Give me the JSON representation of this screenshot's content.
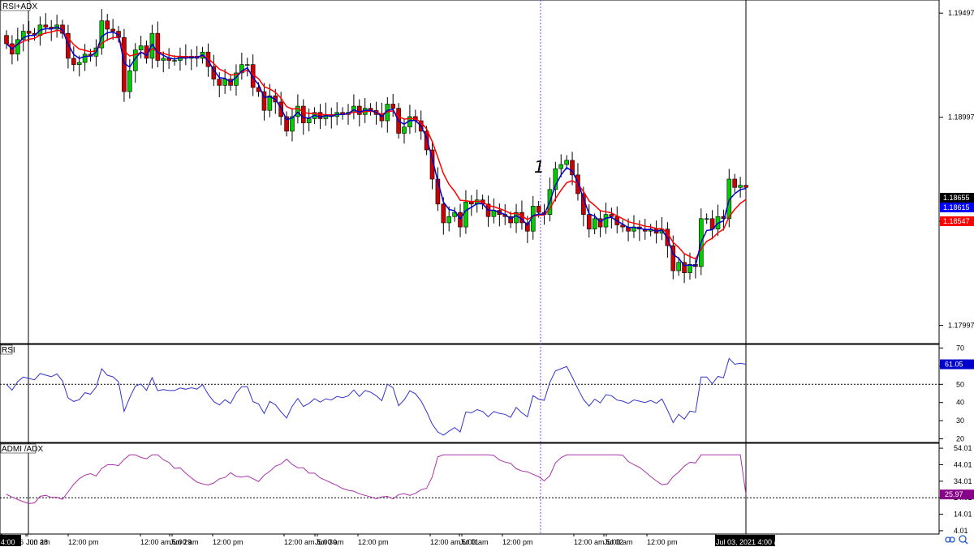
{
  "panels": {
    "main": {
      "label": "RSI+ADX"
    },
    "rsi": {
      "label": "RSI"
    },
    "adx": {
      "label": "ADMI /ADX"
    }
  },
  "chart_data": [
    {
      "type": "candlestick",
      "title": "RSI+ADX",
      "ylim": [
        1.1791,
        1.1956
      ],
      "price_ticks": [
        "1.19497",
        "1.18997",
        "1.18497",
        "1.17997"
      ],
      "price_tick_values": [
        1.19497,
        1.18997,
        1.18497,
        1.17997
      ],
      "current_price_labels": [
        {
          "value": "1.18655",
          "color": "#000000"
        },
        {
          "value": "1.18615",
          "color": "#0000ff"
        },
        {
          "value": "1.18547",
          "color": "#ff0000"
        }
      ],
      "series": [
        {
          "name": "fast_ma",
          "color": "#0000cc"
        },
        {
          "name": "slow_ma",
          "color": "#ff0000"
        }
      ],
      "candles_close": [
        1.1935,
        1.193,
        1.1937,
        1.1941,
        1.194,
        1.1939,
        1.1944,
        1.1943,
        1.1942,
        1.1944,
        1.194,
        1.1928,
        1.1925,
        1.1926,
        1.193,
        1.1929,
        1.1933,
        1.1946,
        1.1942,
        1.1941,
        1.1938,
        1.1912,
        1.1922,
        1.1932,
        1.1934,
        1.1928,
        1.194,
        1.1927,
        1.1928,
        1.1927,
        1.1927,
        1.1929,
        1.1928,
        1.1929,
        1.1928,
        1.1931,
        1.1924,
        1.1918,
        1.1915,
        1.1918,
        1.1915,
        1.1921,
        1.1925,
        1.1925,
        1.1914,
        1.1912,
        1.1903,
        1.191,
        1.1907,
        1.19,
        1.1893,
        1.19,
        1.1905,
        1.1897,
        1.1899,
        1.1902,
        1.1899,
        1.1901,
        1.19,
        1.1902,
        1.1901,
        1.1902,
        1.1905,
        1.1901,
        1.1904,
        1.1903,
        1.1901,
        1.1898,
        1.1906,
        1.1904,
        1.1892,
        1.1895,
        1.19,
        1.1898,
        1.1893,
        1.1884,
        1.187,
        1.1858,
        1.1849,
        1.1852,
        1.1854,
        1.1847,
        1.1859,
        1.1858,
        1.186,
        1.1858,
        1.1852,
        1.1855,
        1.1853,
        1.1852,
        1.1849,
        1.1854,
        1.1849,
        1.1845,
        1.1857,
        1.1854,
        1.1853,
        1.1865,
        1.1875,
        1.1877,
        1.1879,
        1.1872,
        1.1863,
        1.1853,
        1.1846,
        1.1851,
        1.1847,
        1.1853,
        1.1852,
        1.1848,
        1.1847,
        1.1845,
        1.1847,
        1.1846,
        1.1845,
        1.1846,
        1.1844,
        1.1846,
        1.1838,
        1.1826,
        1.183,
        1.1825,
        1.1829,
        1.1828,
        1.1851,
        1.1851,
        1.1846,
        1.1852,
        1.1851,
        1.187,
        1.1866,
        1.1867,
        1.1866
      ]
    },
    {
      "type": "line",
      "title": "RSI",
      "ylim": [
        18,
        72
      ],
      "ticks": [
        70,
        60,
        50,
        40,
        30,
        20
      ],
      "reference_level": 50,
      "current_value": "61.05",
      "color": "#3333cc"
    },
    {
      "type": "line",
      "title": "ADMI /ADX",
      "ylim": [
        2,
        57
      ],
      "ticks": [
        "54.01",
        "44.01",
        "34.01",
        "24.01",
        "14.01",
        "4.01"
      ],
      "reference_level": 24,
      "current_value": "25.97",
      "color": "#aa33aa"
    }
  ],
  "x_axis": {
    "labels": [
      "Jun 26",
      "4:00",
      "Jun 28",
      ":00 am",
      "12:00 pm",
      "12:00 am",
      "Jun 29",
      "5:00 am",
      "12:00 pm",
      "12:00 am",
      "Jun 30",
      "5:00 am",
      "12:00 pm",
      "12:00 am",
      "Jul 01",
      "5:00 am",
      "12:00 pm",
      "12:00 am",
      "Jul 02",
      "5:00 am",
      "12:00 pm",
      "Jul 03, 2021 4:00 am"
    ]
  },
  "annotations": {
    "marker_text": "1"
  }
}
